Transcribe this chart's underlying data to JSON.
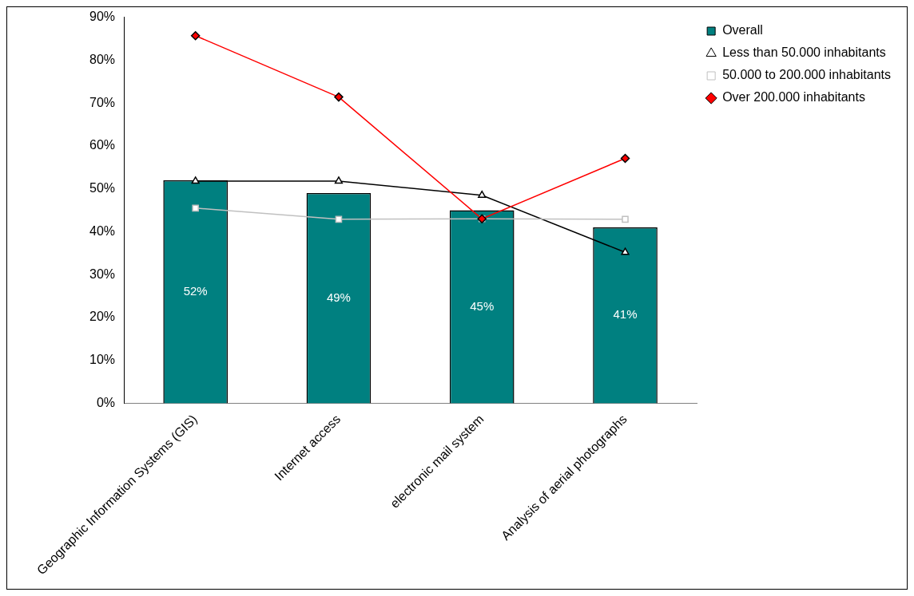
{
  "chart_data": {
    "type": "bar",
    "categories": [
      "Geographic Information Systems (GIS)",
      "Internet access",
      "electronic mail system",
      "Analysis of aerial photographs"
    ],
    "series": [
      {
        "name": "Overall",
        "color": "#008080",
        "values": [
          52,
          49,
          45,
          41
        ],
        "value_labels": [
          "52%",
          "49%",
          "45%",
          "41%"
        ]
      },
      {
        "name": "Less than 50.000 inhabitants",
        "type": "line",
        "color": "#000000",
        "marker": "triangle",
        "values": [
          51.8,
          51.8,
          48.5,
          35.2
        ]
      },
      {
        "name": "50.000 to 200.000 inhabitants",
        "type": "line",
        "color": "#c0c0c0",
        "marker": "square",
        "values": [
          45.5,
          42.9,
          43.0,
          42.9
        ]
      },
      {
        "name": "Over 200.000 inhabitants",
        "type": "line",
        "color": "#ff0000",
        "marker": "diamond",
        "values": [
          85.7,
          71.4,
          43.0,
          57.1
        ]
      }
    ],
    "ylim": [
      0,
      90
    ],
    "yticks": [
      {
        "value": 0,
        "label": "0%"
      },
      {
        "value": 10,
        "label": "10%"
      },
      {
        "value": 20,
        "label": "20%"
      },
      {
        "value": 30,
        "label": "30%"
      },
      {
        "value": 40,
        "label": "40%"
      },
      {
        "value": 50,
        "label": "50%"
      },
      {
        "value": 60,
        "label": "60%"
      },
      {
        "value": 70,
        "label": "70%"
      },
      {
        "value": 80,
        "label": "80%"
      },
      {
        "value": 90,
        "label": "90%"
      }
    ],
    "grid": false,
    "legend": "top right"
  }
}
